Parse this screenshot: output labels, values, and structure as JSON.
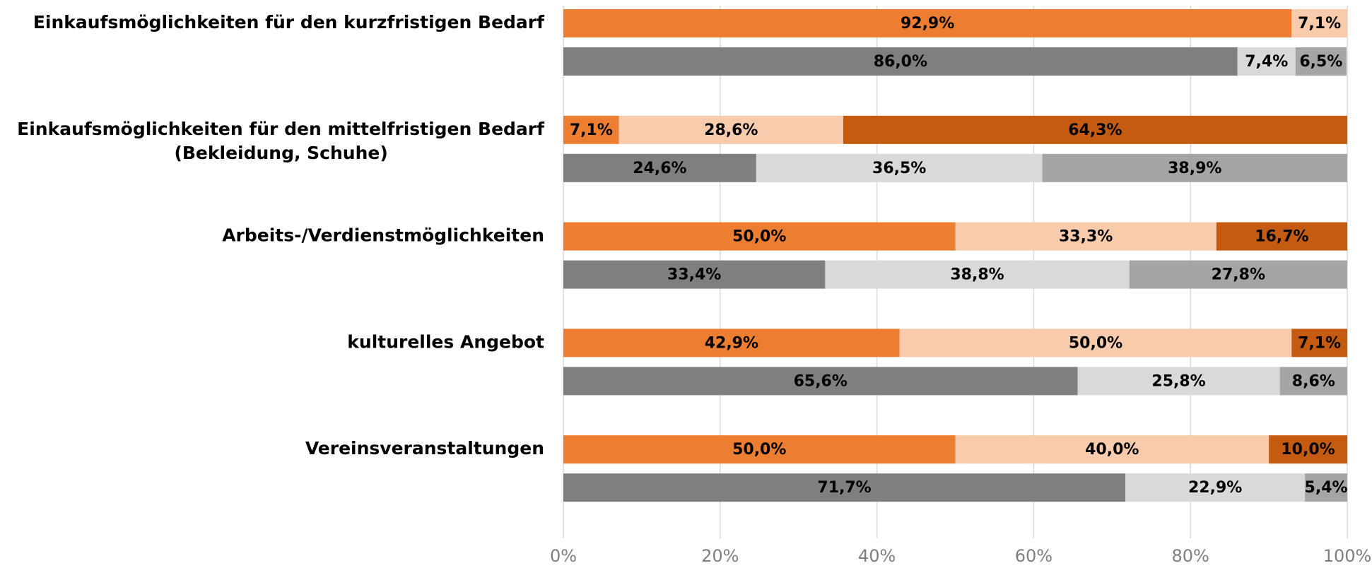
{
  "chart_data": {
    "type": "stacked_barh_pairs",
    "categories": [
      [
        "Einkaufsmöglichkeiten für den kurzfristigen Bedarf"
      ],
      [
        "Einkaufsmöglichkeiten für den mittelfristigen Bedarf",
        "(Bekleidung, Schuhe)"
      ],
      [
        "Arbeits-/Verdienstmöglichkeiten"
      ],
      [
        "kulturelles Angebot"
      ],
      [
        "Vereinsveranstaltungen"
      ]
    ],
    "stacks": [
      {
        "series": [
          {
            "color": "#ED7D31",
            "values": [
              92.9,
              7.1,
              50.0,
              42.9,
              50.0
            ],
            "value_labels": [
              "92,9%",
              "7,1%",
              "50,0%",
              "42,9%",
              "50,0%"
            ]
          },
          {
            "color": "#F8CBAD",
            "values": [
              7.1,
              28.6,
              33.3,
              50.0,
              40.0
            ],
            "value_labels": [
              "7,1%",
              "28,6%",
              "33,3%",
              "50,0%",
              "40,0%"
            ]
          },
          {
            "color": "#C55A11",
            "values": [
              null,
              64.3,
              16.7,
              7.1,
              10.0
            ],
            "value_labels": [
              null,
              "64,3%",
              "16,7%",
              "7,1%",
              "10,0%"
            ]
          }
        ]
      },
      {
        "series": [
          {
            "color": "#7F7F7F",
            "values": [
              86.0,
              24.6,
              33.4,
              65.6,
              71.7
            ],
            "value_labels": [
              "86,0%",
              "24,6%",
              "33,4%",
              "65,6%",
              "71,7%"
            ]
          },
          {
            "color": "#D9D9D9",
            "values": [
              7.4,
              36.5,
              38.8,
              25.8,
              22.9
            ],
            "value_labels": [
              "7,4%",
              "36,5%",
              "38,8%",
              "25,8%",
              "22,9%"
            ]
          },
          {
            "color": "#A5A5A5",
            "values": [
              6.5,
              38.9,
              27.8,
              8.6,
              5.4
            ],
            "value_labels": [
              "6,5%",
              "38,9%",
              "27,8%",
              "8,6%",
              "5,4%"
            ]
          }
        ]
      }
    ],
    "xlim": [
      0,
      100
    ],
    "xticks": [
      {
        "value": 0,
        "label": "0%"
      },
      {
        "value": 20,
        "label": "20%"
      },
      {
        "value": 40,
        "label": "40%"
      },
      {
        "value": 60,
        "label": "60%"
      },
      {
        "value": 80,
        "label": "80%"
      },
      {
        "value": 100,
        "label": "100%"
      }
    ],
    "grid": true
  }
}
